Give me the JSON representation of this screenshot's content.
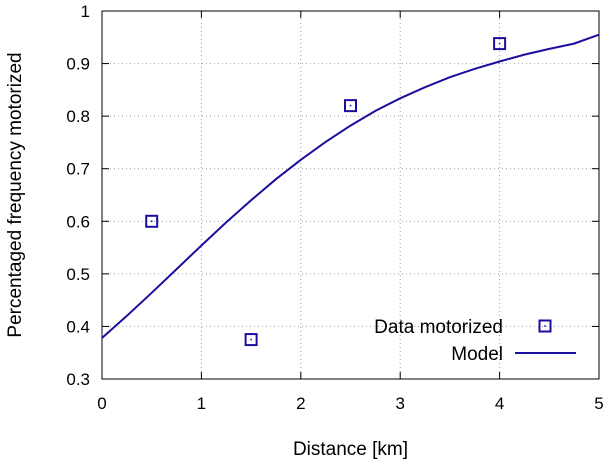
{
  "chart_data": {
    "type": "scatter",
    "title": "",
    "xlabel": "Distance [km]",
    "ylabel": "Percentaged frequency motorized",
    "xlim": [
      0,
      5
    ],
    "ylim": [
      0.3,
      1.0
    ],
    "x_ticks": [
      "0",
      "1",
      "2",
      "3",
      "4",
      "5"
    ],
    "y_ticks": [
      "0.3",
      "0.4",
      "0.5",
      "0.6",
      "0.7",
      "0.8",
      "0.9",
      "1"
    ],
    "grid": true,
    "legend_position": "bottom-right",
    "colors": {
      "series": "#1a0f9e",
      "frame": "#000000",
      "grid": "#a0a0a0"
    },
    "series": [
      {
        "name": "Data motorized",
        "type": "scatter",
        "marker": "square",
        "x": [
          0.5,
          1.5,
          2.5,
          4.0
        ],
        "y": [
          0.6,
          0.375,
          0.82,
          0.938
        ]
      },
      {
        "name": "Model",
        "type": "line",
        "x": [
          0,
          0.25,
          0.5,
          0.75,
          1,
          1.25,
          1.5,
          1.75,
          2,
          2.25,
          2.5,
          2.75,
          3,
          3.25,
          3.5,
          3.75,
          4,
          4.25,
          4.5,
          4.75,
          5
        ],
        "y": [
          0.378,
          0.42,
          0.464,
          0.509,
          0.554,
          0.598,
          0.64,
          0.68,
          0.717,
          0.751,
          0.782,
          0.81,
          0.834,
          0.855,
          0.874,
          0.89,
          0.904,
          0.917,
          0.928,
          0.938,
          0.955
        ]
      }
    ]
  }
}
